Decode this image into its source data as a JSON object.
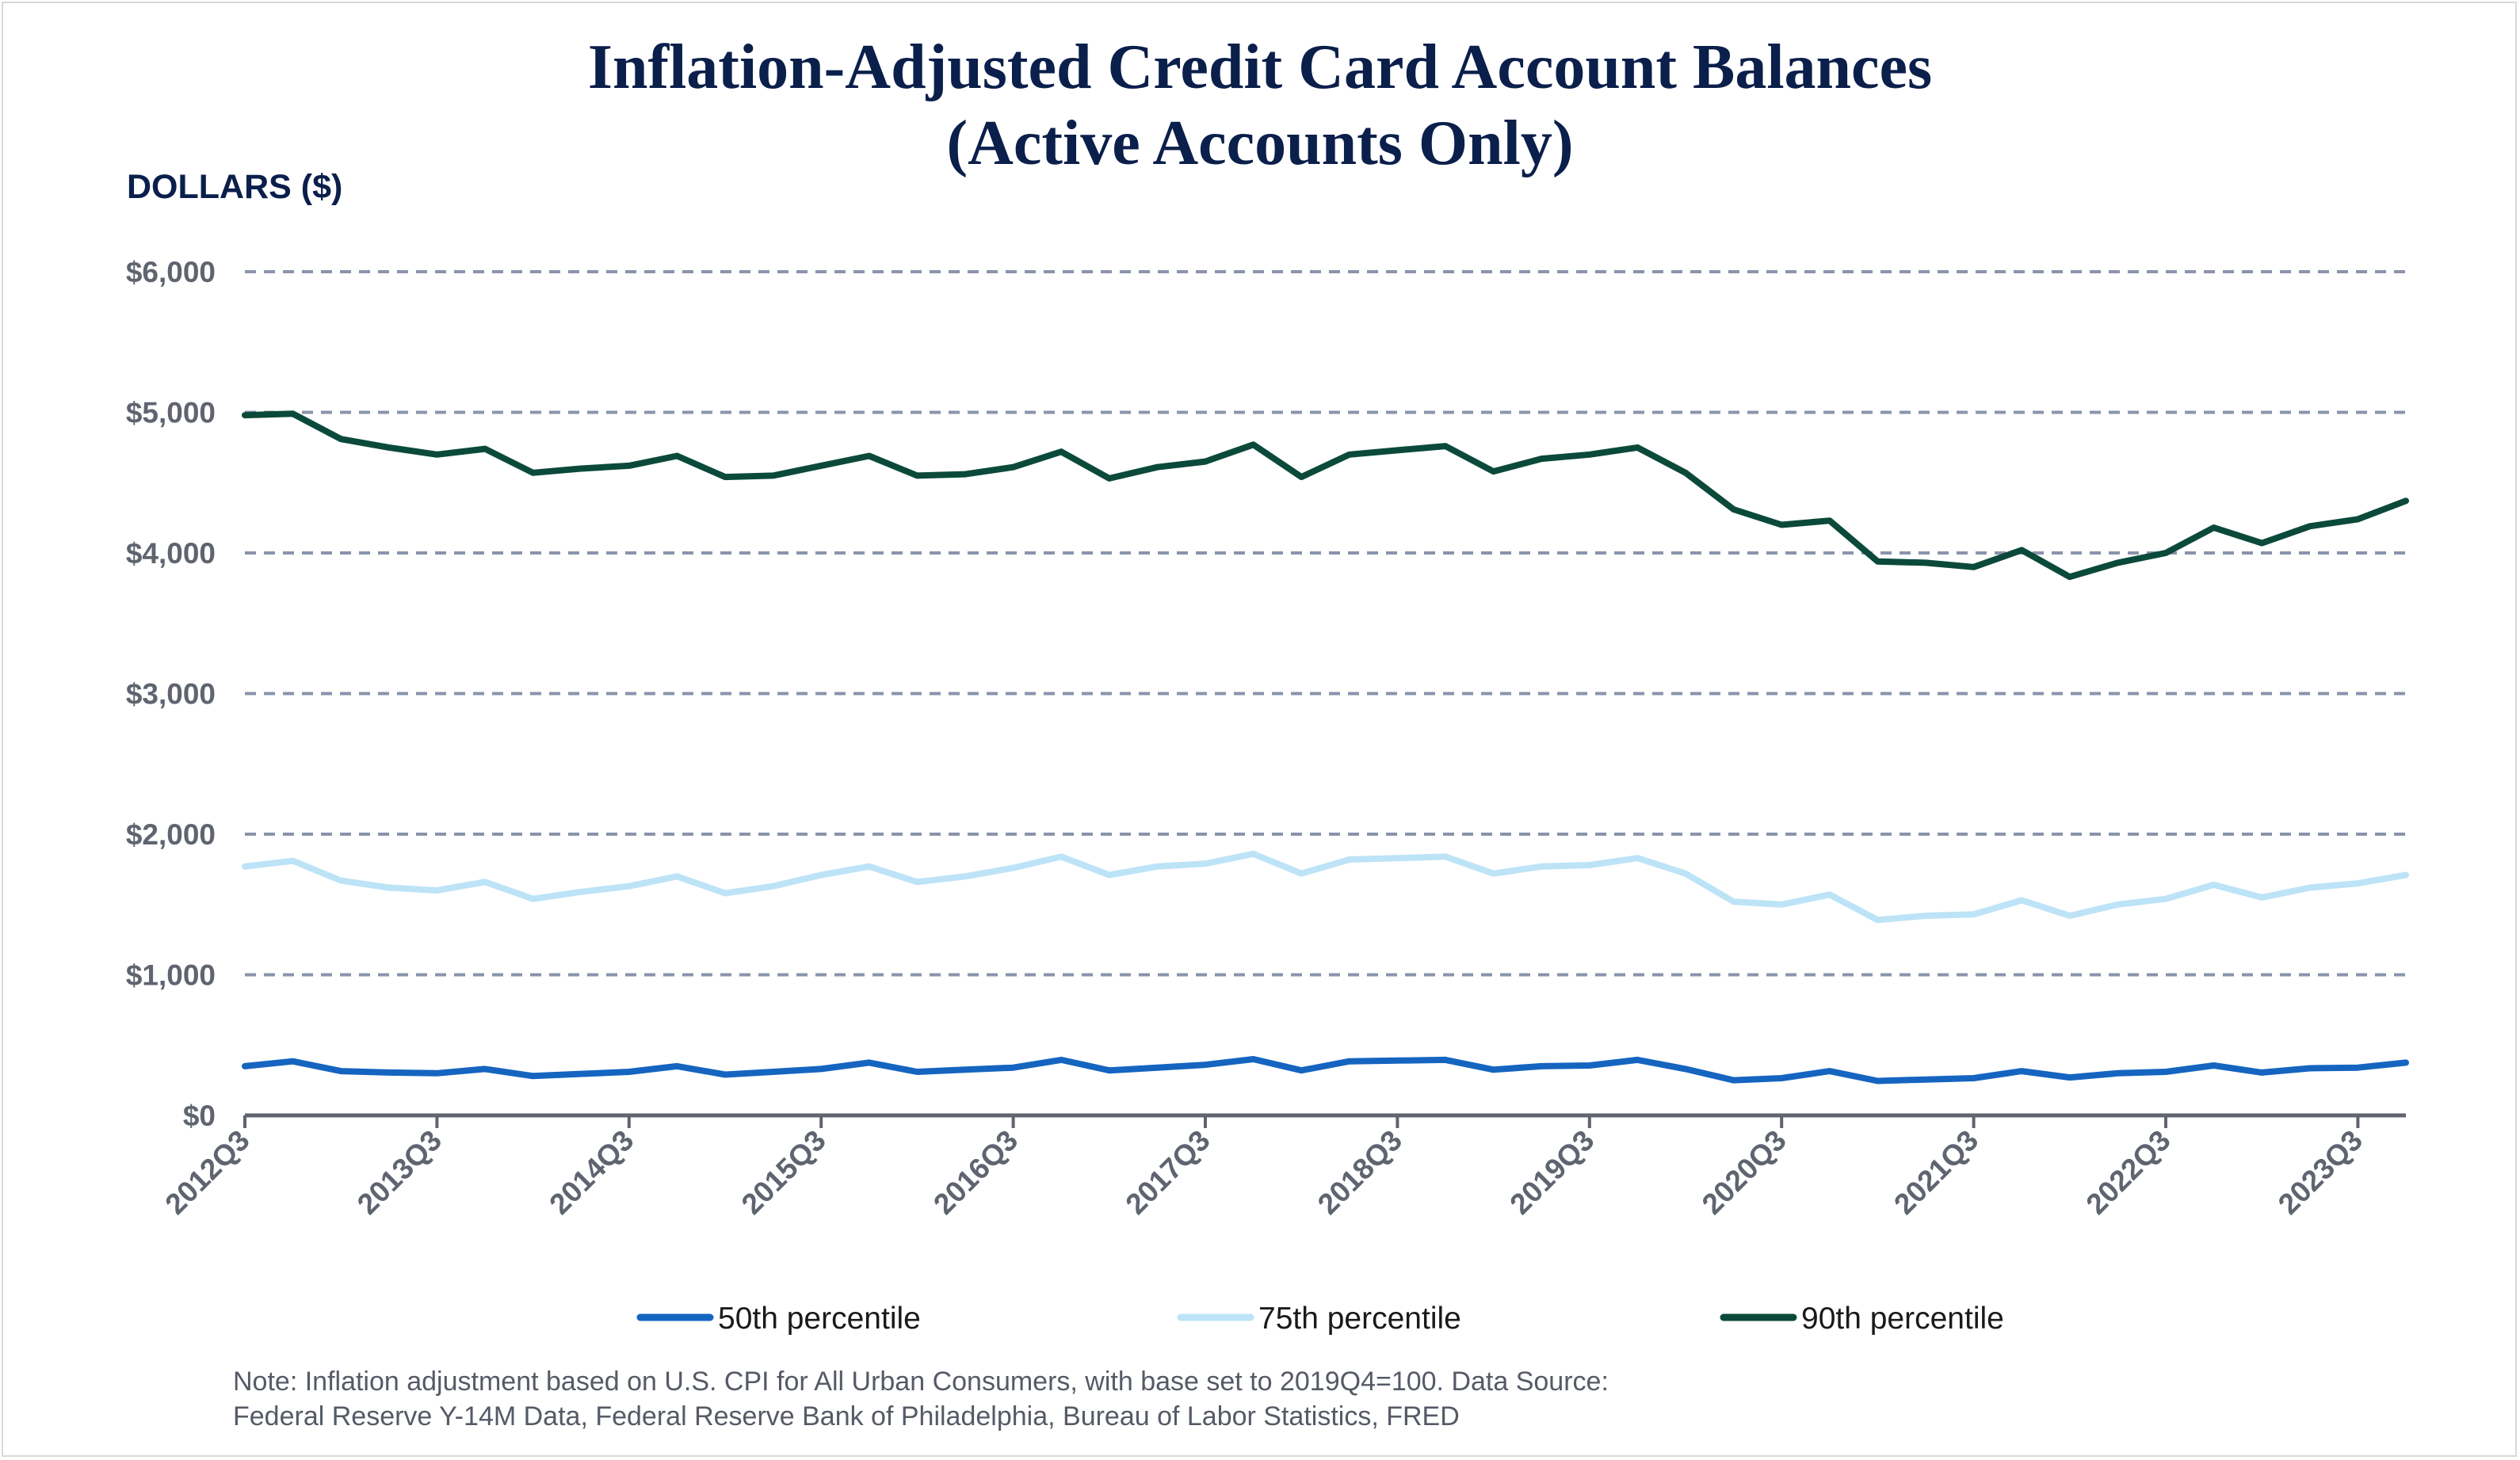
{
  "chart_data": {
    "type": "line",
    "title": "Inflation-Adjusted Credit Card Account Balances",
    "subtitle": "(Active Accounts Only)",
    "ylabel": "DOLLARS ($)",
    "ylim": [
      0,
      6000
    ],
    "y_ticks": [
      0,
      1000,
      2000,
      3000,
      4000,
      5000,
      6000
    ],
    "y_tick_labels": [
      "$0",
      "$1,000",
      "$2,000",
      "$3,000",
      "$4,000",
      "$5,000",
      "$6,000"
    ],
    "x_tick_labels": [
      "2012Q3",
      "2013Q3",
      "2014Q3",
      "2015Q3",
      "2016Q3",
      "2017Q3",
      "2018Q3",
      "2019Q3",
      "2020Q3",
      "2021Q3",
      "2022Q3",
      "2023Q3"
    ],
    "grid": "horizontal dashed",
    "legend_position": "bottom",
    "x": [
      "2012Q3",
      "2012Q4",
      "2013Q1",
      "2013Q2",
      "2013Q3",
      "2013Q4",
      "2014Q1",
      "2014Q2",
      "2014Q3",
      "2014Q4",
      "2015Q1",
      "2015Q2",
      "2015Q3",
      "2015Q4",
      "2016Q1",
      "2016Q2",
      "2016Q3",
      "2016Q4",
      "2017Q1",
      "2017Q2",
      "2017Q3",
      "2017Q4",
      "2018Q1",
      "2018Q2",
      "2018Q3",
      "2018Q4",
      "2019Q1",
      "2019Q2",
      "2019Q3",
      "2019Q4",
      "2020Q1",
      "2020Q2",
      "2020Q3",
      "2020Q4",
      "2021Q1",
      "2021Q2",
      "2021Q3",
      "2021Q4",
      "2022Q1",
      "2022Q2",
      "2022Q3",
      "2022Q4",
      "2023Q1",
      "2023Q2",
      "2023Q3",
      "2023Q4"
    ],
    "series": [
      {
        "name": "50th percentile",
        "color": "#1565c0",
        "values": [
          350,
          385,
          315,
          305,
          300,
          330,
          280,
          295,
          310,
          350,
          290,
          310,
          330,
          375,
          310,
          325,
          340,
          395,
          320,
          340,
          360,
          400,
          320,
          385,
          390,
          395,
          325,
          350,
          355,
          395,
          330,
          250,
          265,
          315,
          245,
          255,
          265,
          315,
          270,
          300,
          310,
          355,
          305,
          335,
          340,
          375
        ]
      },
      {
        "name": "75th percentile",
        "color": "#bde3f7",
        "values": [
          1770,
          1810,
          1670,
          1620,
          1600,
          1660,
          1540,
          1590,
          1630,
          1700,
          1580,
          1630,
          1710,
          1770,
          1660,
          1700,
          1760,
          1840,
          1710,
          1770,
          1790,
          1860,
          1720,
          1820,
          1830,
          1840,
          1720,
          1770,
          1780,
          1830,
          1720,
          1520,
          1500,
          1570,
          1390,
          1420,
          1430,
          1530,
          1420,
          1500,
          1540,
          1640,
          1550,
          1620,
          1650,
          1710
        ]
      },
      {
        "name": "90th percentile",
        "color": "#0b4a3a",
        "values": [
          4980,
          4990,
          4810,
          4750,
          4700,
          4740,
          4570,
          4600,
          4620,
          4690,
          4540,
          4550,
          4620,
          4690,
          4550,
          4560,
          4610,
          4720,
          4530,
          4610,
          4650,
          4770,
          4540,
          4700,
          4730,
          4760,
          4580,
          4670,
          4700,
          4750,
          4570,
          4310,
          4200,
          4230,
          3940,
          3930,
          3900,
          4020,
          3830,
          3930,
          4000,
          4180,
          4070,
          4190,
          4240,
          4370
        ]
      }
    ]
  },
  "note": {
    "line1": "Note: Inflation adjustment based on U.S. CPI for All Urban Consumers, with base set to 2019Q4=100. Data Source:",
    "line2": "Federal Reserve Y-14M Data, Federal Reserve Bank of Philadelphia, Bureau of Labor Statistics, FRED"
  }
}
